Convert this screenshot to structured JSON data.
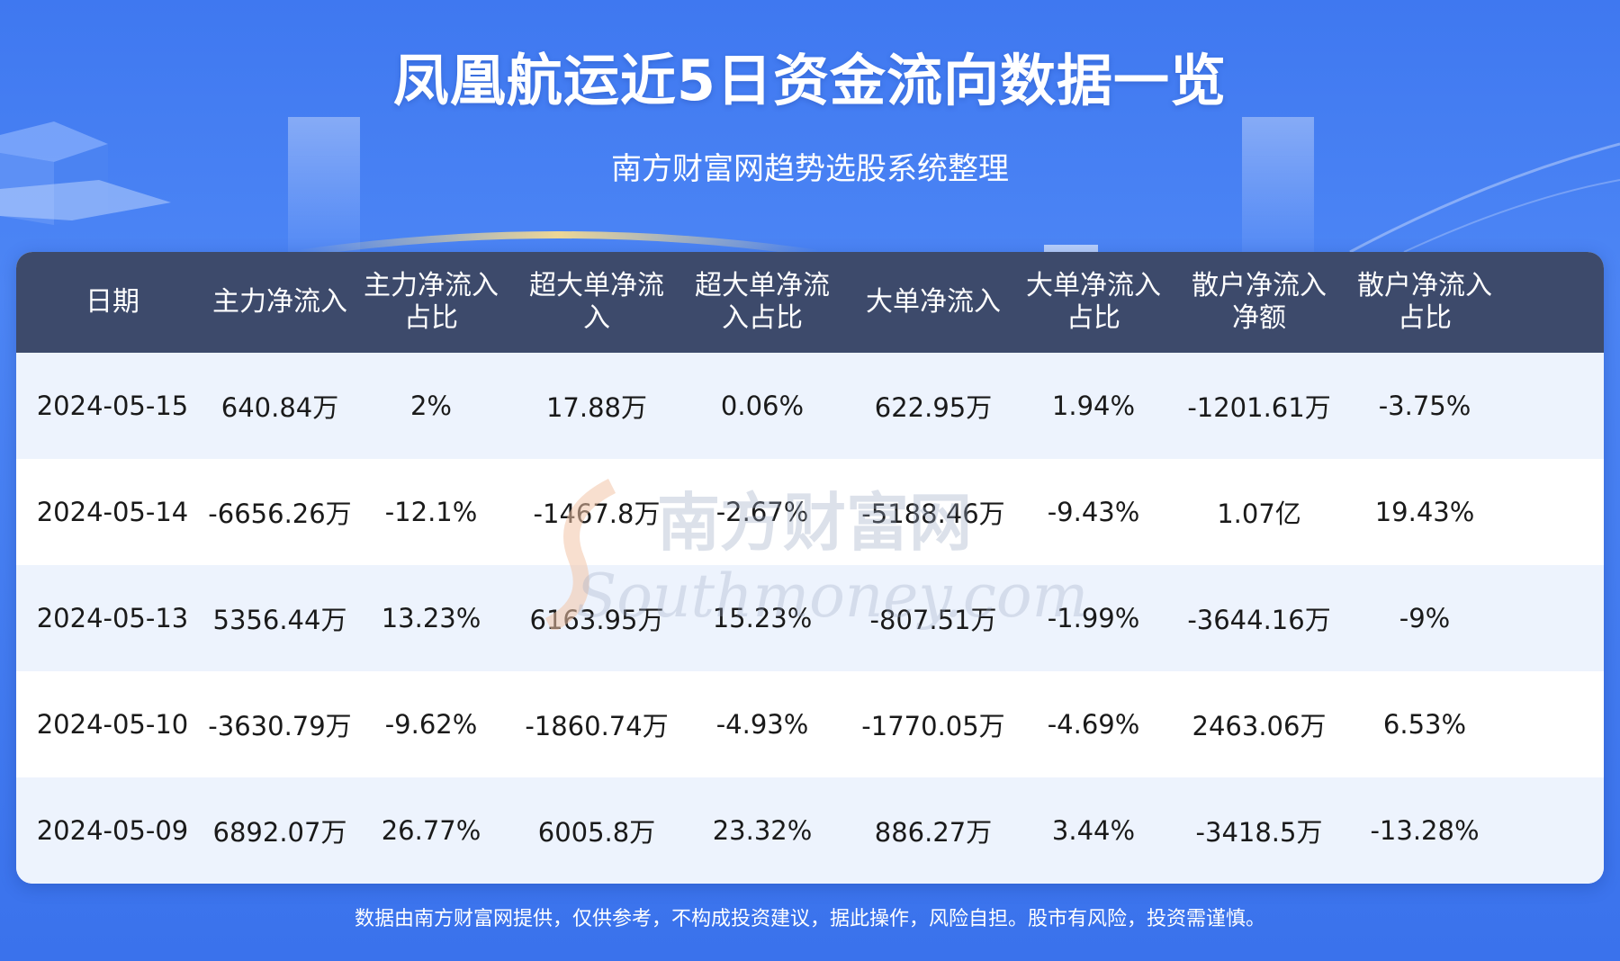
{
  "header": {
    "title": "凤凰航运近5日资金流向数据一览",
    "subtitle": "南方财富网趋势选股系统整理"
  },
  "table": {
    "columns": [
      "日期",
      "主力净流入",
      "主力净流入占比",
      "超大单净流入",
      "超大单净流入占比",
      "大单净流入",
      "大单净流入占比",
      "散户净流入净额",
      "散户净流入占比"
    ],
    "rows": [
      [
        "2024-05-15",
        "640.84万",
        "2%",
        "17.88万",
        "0.06%",
        "622.95万",
        "1.94%",
        "-1201.61万",
        "-3.75%"
      ],
      [
        "2024-05-14",
        "-6656.26万",
        "-12.1%",
        "-1467.8万",
        "-2.67%",
        "-5188.46万",
        "-9.43%",
        "1.07亿",
        "19.43%"
      ],
      [
        "2024-05-13",
        "5356.44万",
        "13.23%",
        "6163.95万",
        "15.23%",
        "-807.51万",
        "-1.99%",
        "-3644.16万",
        "-9%"
      ],
      [
        "2024-05-10",
        "-3630.79万",
        "-9.62%",
        "-1860.74万",
        "-4.93%",
        "-1770.05万",
        "-4.69%",
        "2463.06万",
        "6.53%"
      ],
      [
        "2024-05-09",
        "6892.07万",
        "26.77%",
        "6005.8万",
        "23.32%",
        "886.27万",
        "3.44%",
        "-3418.5万",
        "-13.28%"
      ]
    ]
  },
  "watermark": {
    "cn": "南方财富网",
    "en": "Southmoney.com"
  },
  "footer": {
    "disclaimer": "数据由南方财富网提供，仅供参考，不构成投资建议，据此操作，风险自担。股市有风险，投资需谨慎。"
  },
  "colors": {
    "background": "#3f78f0",
    "header_row": "#3d4a6b",
    "row_alt": "#edf3fd",
    "text": "#1a1a1a"
  }
}
